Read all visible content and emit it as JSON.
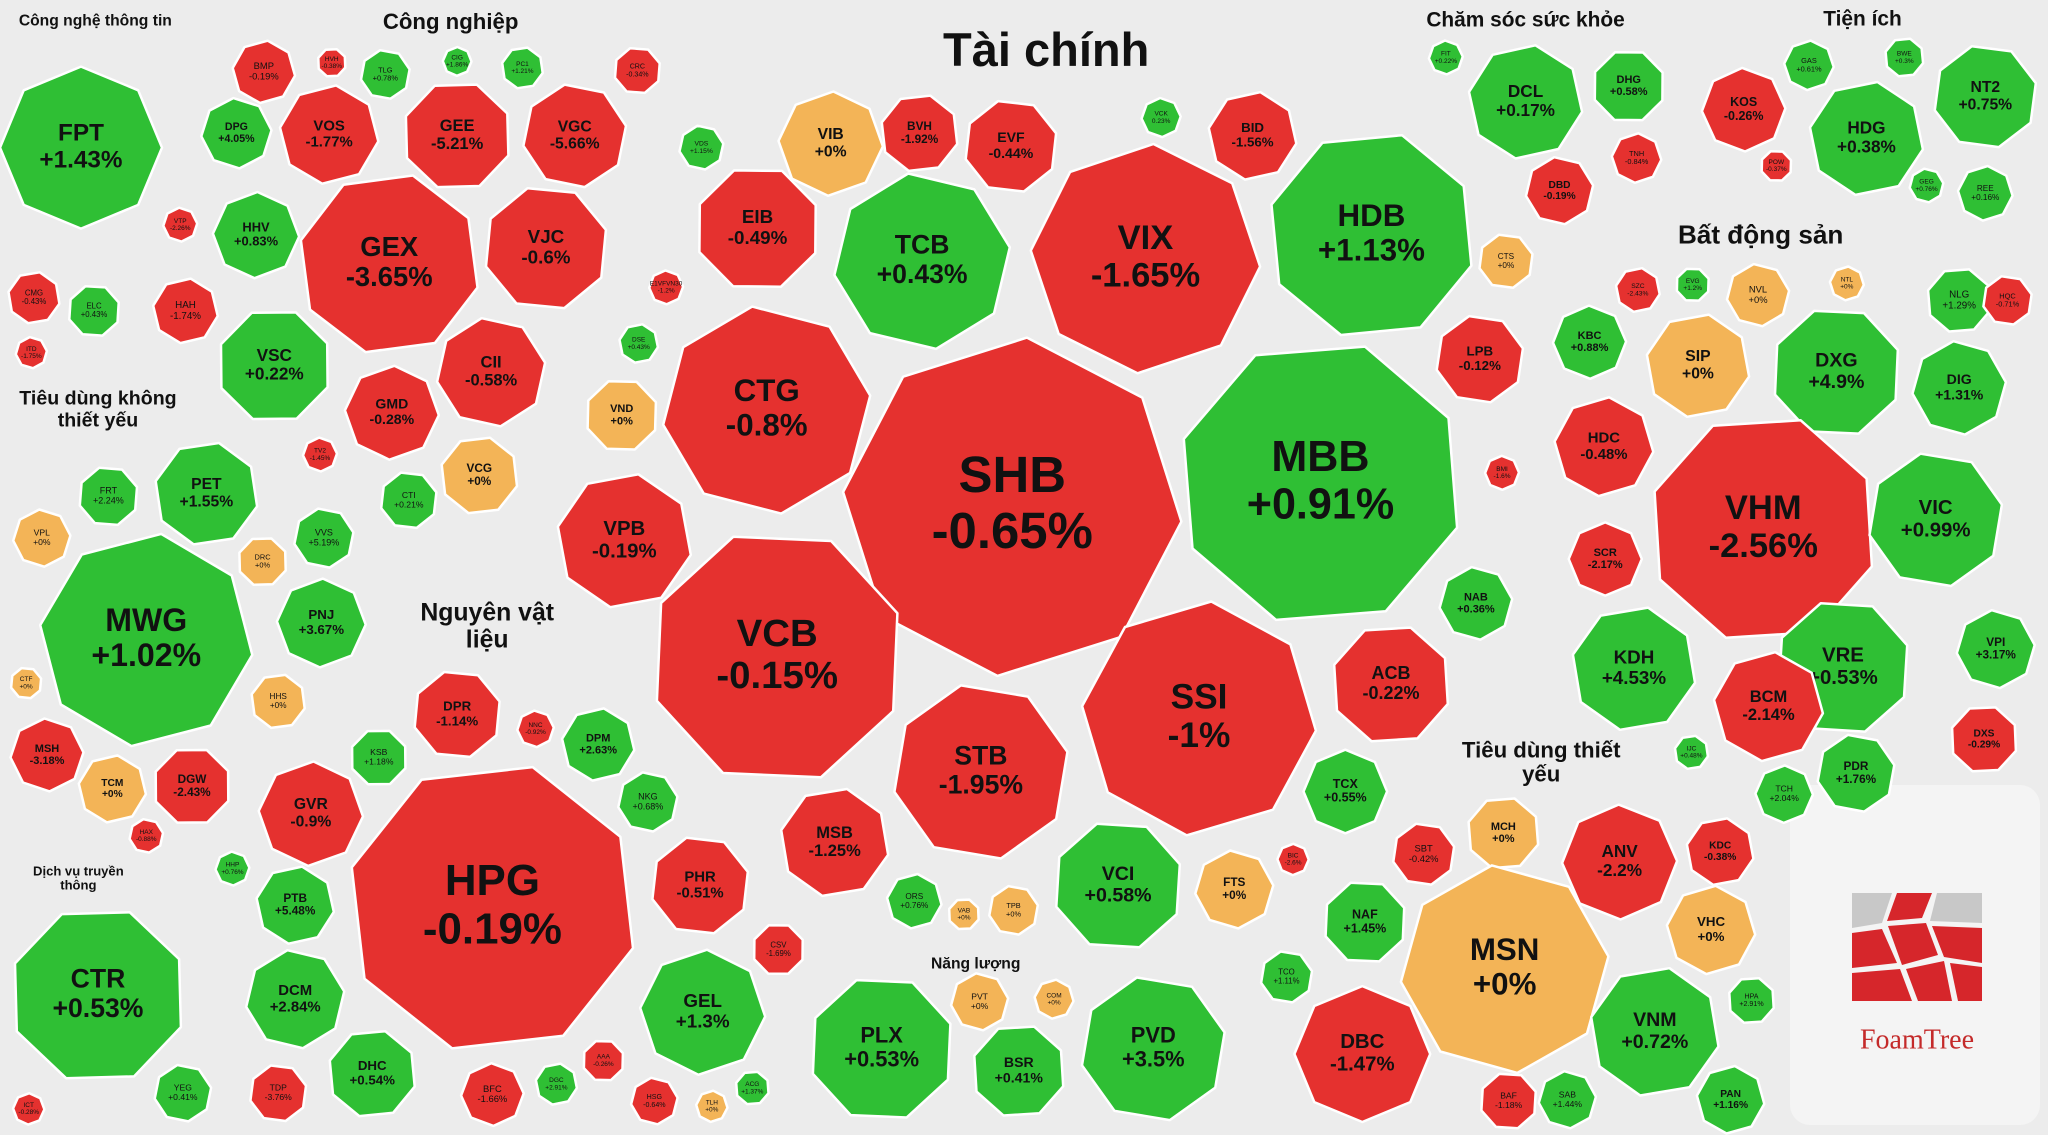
{
  "chart_data": {
    "type": "treemap",
    "colors": {
      "up": "#2fbf34",
      "down": "#e5312f",
      "flat": "#f3b457"
    },
    "logo": "FoamTree",
    "groups": [
      {
        "name": "Công nghệ thông tin",
        "categories": [
          "FPT",
          "CMG",
          "ELC",
          "ITD"
        ],
        "values": [
          1.43,
          -0.43,
          0.43,
          -1.75
        ],
        "value_labels": [
          "+1.43%",
          "-0.43%",
          "+0.43%",
          "-1.75%"
        ]
      },
      {
        "name": "Công nghiệp",
        "categories": [
          "BMP",
          "HVH",
          "TLG",
          "CIG",
          "PC1",
          "CRC",
          "DPG",
          "VOS",
          "GEE",
          "VGC",
          "HHV",
          "GEX",
          "VJC",
          "VTP",
          "HAH",
          "VSC",
          "CII",
          "GMD",
          "VCG",
          "CTI",
          "TV2"
        ],
        "values": [
          -0.19,
          -0.38,
          0.78,
          1.86,
          1.21,
          -0.34,
          4.05,
          -1.77,
          -5.21,
          -5.66,
          0.83,
          -3.65,
          -0.6,
          -2.26,
          -1.74,
          0.22,
          -0.58,
          -0.28,
          0,
          0.21,
          -1.45
        ],
        "value_labels": [
          "-0.19%",
          "-0.38%",
          "+0.78%",
          "+1.86%",
          "+1.21%",
          "-0.34%",
          "+4.05%",
          "-1.77%",
          "-5.21%",
          "-5.66%",
          "+0.83%",
          "-3.65%",
          "-0.6%",
          "-2.26%",
          "-1.74%",
          "+0.22%",
          "-0.58%",
          "-0.28%",
          "+0%",
          "+0.21%",
          "-1.45%"
        ]
      },
      {
        "name": "Tiêu dùng không thiết yếu",
        "categories": [
          "PET",
          "FRT",
          "VPL",
          "MWG",
          "DRC",
          "VVS",
          "PNJ",
          "HHS",
          "CTF",
          "MSH",
          "TCM",
          "DGW",
          "HAX"
        ],
        "values": [
          1.55,
          2.24,
          0,
          1.02,
          0,
          5.19,
          3.67,
          0,
          0,
          -3.18,
          0,
          -2.43,
          -0.88
        ],
        "value_labels": [
          "+1.55%",
          "+2.24%",
          "+0%",
          "+1.02%",
          "+0%",
          "+5.19%",
          "+3.67%",
          "+0%",
          "+0%",
          "-3.18%",
          "+0%",
          "-2.43%",
          "-0.88%"
        ]
      },
      {
        "name": "Dịch vụ truyền thông",
        "categories": [
          "CTR",
          "YEG",
          "ICT"
        ],
        "values": [
          0.53,
          0.41,
          -0.28
        ],
        "value_labels": [
          "+0.53%",
          "+0.41%",
          "-0.28%"
        ]
      },
      {
        "name": "Nguyên vật liệu",
        "categories": [
          "DPR",
          "NNC",
          "DPM",
          "KSB",
          "NKG",
          "GVR",
          "HPG",
          "PHR",
          "HHP",
          "PTB",
          "CSV",
          "DCM",
          "GEL",
          "DHC",
          "TDP",
          "BFC",
          "DGC",
          "AAA",
          "HSG",
          "TLH",
          "ACG"
        ],
        "values": [
          -1.14,
          -0.92,
          2.63,
          1.18,
          0.68,
          -0.9,
          -0.19,
          -0.51,
          0.76,
          5.48,
          -1.69,
          2.84,
          1.3,
          0.54,
          -3.76,
          -1.66,
          2.91,
          -0.26,
          -0.64,
          0,
          1.37
        ],
        "value_labels": [
          "-1.14%",
          "-0.92%",
          "+2.63%",
          "+1.18%",
          "+0.68%",
          "-0.9%",
          "-0.19%",
          "-0.51%",
          "+0.76%",
          "+5.48%",
          "-1.69%",
          "+2.84%",
          "+1.3%",
          "+0.54%",
          "-3.76%",
          "-1.66%",
          "+2.91%",
          "-0.26%",
          "-0.64%",
          "+0%",
          "+1.37%"
        ]
      },
      {
        "name": "Tài chính",
        "categories": [
          "VDS",
          "VIB",
          "BVH",
          "EVF",
          "VCK",
          "BID",
          "EIB",
          "TCB",
          "VIX",
          "HDB",
          "CTS",
          "E1VFVN30",
          "DSE",
          "VND",
          "CTG",
          "SHB",
          "MBB",
          "LPB",
          "BMI",
          "VPB",
          "VCB",
          "NAB",
          "SSI",
          "ACB",
          "STB",
          "TCX",
          "MSB",
          "VCI",
          "FTS",
          "ORS",
          "VAB",
          "TPB",
          "BIC"
        ],
        "values": [
          1.15,
          0,
          -1.92,
          -0.44,
          0.23,
          -1.56,
          -0.49,
          0.43,
          -1.65,
          1.13,
          0,
          -1.2,
          0.43,
          0,
          -0.8,
          -0.65,
          0.91,
          -0.12,
          -1.6,
          -0.19,
          -0.15,
          0.36,
          -1,
          -0.22,
          -1.95,
          0.55,
          -1.25,
          0.58,
          0,
          0.76,
          0,
          0,
          -2.6
        ],
        "value_labels": [
          "+1.15%",
          "+0%",
          "-1.92%",
          "-0.44%",
          "0.23%",
          "-1.56%",
          "-0.49%",
          "+0.43%",
          "-1.65%",
          "+1.13%",
          "+0%",
          "-1.2%",
          "+0.43%",
          "+0%",
          "-0.8%",
          "-0.65%",
          "+0.91%",
          "-0.12%",
          "-1.6%",
          "-0.19%",
          "-0.15%",
          "+0.36%",
          "-1%",
          "-0.22%",
          "-1.95%",
          "+0.55%",
          "-1.25%",
          "+0.58%",
          "+0%",
          "+0.76%",
          "+0%",
          "+0%",
          "-2.6%"
        ]
      },
      {
        "name": "Chăm sóc sức khỏe",
        "categories": [
          "FIT",
          "DCL",
          "DHG",
          "DBD",
          "TNH"
        ],
        "values": [
          0.22,
          0.17,
          0.58,
          -0.19,
          -0.84
        ],
        "value_labels": [
          "+0.22%",
          "+0.17%",
          "+0.58%",
          "-0.19%",
          "-0.84%"
        ]
      },
      {
        "name": "Tiện ích",
        "categories": [
          "GAS",
          "BWE",
          "NT2",
          "KOS",
          "HDG",
          "POW",
          "GEG",
          "REE"
        ],
        "values": [
          0.61,
          0.3,
          0.75,
          -0.26,
          0.38,
          -0.37,
          0.76,
          0.16
        ],
        "value_labels": [
          "+0.61%",
          "+0.3%",
          "+0.75%",
          "-0.26%",
          "+0.38%",
          "-0.37%",
          "+0.76%",
          "+0.16%"
        ]
      },
      {
        "name": "Bất động sản",
        "categories": [
          "SZC",
          "EVG",
          "NVL",
          "NTL",
          "NLG",
          "HQC",
          "KBC",
          "SIP",
          "DXG",
          "DIG",
          "HDC",
          "VHM",
          "VIC",
          "SCR",
          "KDH",
          "VRE",
          "VPI",
          "BCM",
          "DXS",
          "PDR",
          "TCH",
          "IJC"
        ],
        "values": [
          -2.43,
          1.2,
          0,
          0,
          1.29,
          -0.71,
          0.88,
          0,
          4.9,
          1.31,
          -0.48,
          -2.56,
          0.99,
          -2.17,
          4.53,
          0.53,
          3.17,
          -2.14,
          -0.29,
          1.76,
          2.04,
          0.48
        ],
        "value_labels": [
          "-2.43%",
          "+1.2%",
          "+0%",
          "+0%",
          "+1.29%",
          "-0.71%",
          "+0.88%",
          "+0%",
          "+4.9%",
          "+1.31%",
          "-0.48%",
          "-2.56%",
          "+0.99%",
          "-2.17%",
          "+4.53%",
          "+0.53%",
          "+3.17%",
          "-2.14%",
          "-0.29%",
          "+1.76%",
          "+2.04%",
          "+0.48%"
        ]
      },
      {
        "name": "Tiêu dùng thiết yếu",
        "categories": [
          "MCH",
          "SBT",
          "ANV",
          "KDC",
          "NAF",
          "MSN",
          "VHC",
          "HPA",
          "TCO",
          "DBC",
          "VNM",
          "BAF",
          "SAB",
          "PAN"
        ],
        "values": [
          0,
          -0.42,
          -2.2,
          -0.38,
          1.45,
          0,
          0,
          2.91,
          1.11,
          -1.47,
          0.72,
          -1.18,
          1.44,
          1.16
        ],
        "value_labels": [
          "+0%",
          "-0.42%",
          "-2.2%",
          "-0.38%",
          "+1.45%",
          "+0%",
          "+0%",
          "+2.91%",
          "+1.11%",
          "-1.47%",
          "+0.72%",
          "-1.18%",
          "+1.44%",
          "+1.16%"
        ]
      },
      {
        "name": "Năng lượng",
        "categories": [
          "PLX",
          "PVT",
          "COM",
          "BSR",
          "PVD"
        ],
        "values": [
          0.53,
          0,
          0,
          0.41,
          3.5
        ],
        "value_labels": [
          "+0.53%",
          "+0%",
          "+0%",
          "+0.41%",
          "+3.5%"
        ]
      }
    ]
  }
}
